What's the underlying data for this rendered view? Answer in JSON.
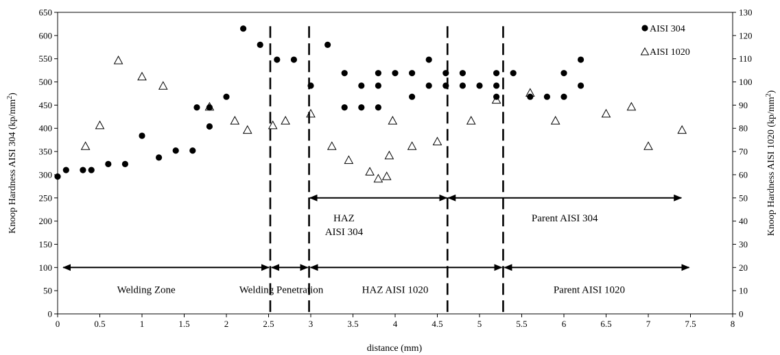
{
  "chart_data": {
    "type": "scatter",
    "xlabel": "distance (mm)",
    "ylabel_left": "Knoop Hardness AISI 304 (kp/mm²)",
    "ylabel_right": "Knoop Hardness AISI 1020 (kp/mm²)",
    "xlim": [
      0,
      8
    ],
    "ylim_left": [
      0,
      650
    ],
    "ylim_right": [
      0,
      130
    ],
    "x_ticks": [
      "0",
      "0.5",
      "1",
      "1.5",
      "2",
      "2.5",
      "3",
      "3.5",
      "4",
      "4.5",
      "5",
      "5.5",
      "6",
      "6.5",
      "7",
      "7.5",
      "8"
    ],
    "y_left_ticks": [
      "0",
      "50",
      "100",
      "150",
      "200",
      "250",
      "300",
      "350",
      "400",
      "450",
      "500",
      "550",
      "600",
      "650"
    ],
    "y_right_ticks": [
      "0",
      "10",
      "20",
      "30",
      "40",
      "50",
      "60",
      "70",
      "80",
      "90",
      "100",
      "110",
      "120",
      "130"
    ],
    "legend_placement": "top-right",
    "series": [
      {
        "name": "AISI 304",
        "marker": "filled-circle",
        "axis": "left",
        "points": [
          [
            0,
            296
          ],
          [
            0.1,
            310
          ],
          [
            0.3,
            310
          ],
          [
            0.4,
            310
          ],
          [
            0.6,
            323
          ],
          [
            0.8,
            323
          ],
          [
            1.0,
            384
          ],
          [
            1.2,
            337
          ],
          [
            1.4,
            352
          ],
          [
            1.6,
            352
          ],
          [
            1.65,
            445
          ],
          [
            1.8,
            404
          ],
          [
            1.8,
            445
          ],
          [
            2.0,
            468
          ],
          [
            2.2,
            615
          ],
          [
            2.4,
            580
          ],
          [
            2.6,
            548
          ],
          [
            2.8,
            548
          ],
          [
            3.0,
            492
          ],
          [
            3.2,
            580
          ],
          [
            3.4,
            519
          ],
          [
            3.4,
            445
          ],
          [
            3.6,
            492
          ],
          [
            3.6,
            445
          ],
          [
            3.8,
            519
          ],
          [
            3.8,
            492
          ],
          [
            3.8,
            445
          ],
          [
            4.0,
            519
          ],
          [
            4.2,
            519
          ],
          [
            4.2,
            468
          ],
          [
            4.4,
            548
          ],
          [
            4.4,
            492
          ],
          [
            4.6,
            519
          ],
          [
            4.6,
            492
          ],
          [
            4.8,
            519
          ],
          [
            4.8,
            492
          ],
          [
            5.0,
            492
          ],
          [
            5.2,
            519
          ],
          [
            5.2,
            492
          ],
          [
            5.2,
            468
          ],
          [
            5.4,
            519
          ],
          [
            5.6,
            468
          ],
          [
            5.8,
            468
          ],
          [
            6.0,
            519
          ],
          [
            6.0,
            468
          ],
          [
            6.2,
            548
          ],
          [
            6.2,
            492
          ]
        ]
      },
      {
        "name": "AISI 1020",
        "marker": "open-triangle",
        "axis": "right",
        "points": [
          [
            0.33,
            72
          ],
          [
            0.5,
            81
          ],
          [
            0.72,
            109
          ],
          [
            1.0,
            102
          ],
          [
            1.25,
            98
          ],
          [
            1.8,
            89
          ],
          [
            2.1,
            83
          ],
          [
            2.25,
            79
          ],
          [
            2.55,
            81
          ],
          [
            2.7,
            83
          ],
          [
            3.0,
            86
          ],
          [
            3.25,
            72
          ],
          [
            3.45,
            66
          ],
          [
            3.7,
            61
          ],
          [
            3.8,
            58
          ],
          [
            3.9,
            59
          ],
          [
            3.93,
            68
          ],
          [
            3.97,
            83
          ],
          [
            4.2,
            72
          ],
          [
            4.5,
            74
          ],
          [
            4.9,
            83
          ],
          [
            5.2,
            92
          ],
          [
            5.6,
            95
          ],
          [
            5.9,
            83
          ],
          [
            6.5,
            86
          ],
          [
            6.8,
            89
          ],
          [
            7.0,
            72
          ],
          [
            7.4,
            79
          ]
        ]
      }
    ],
    "zone_dividers_x": [
      2.52,
      2.98,
      4.62,
      5.28
    ],
    "zones_304": [
      {
        "label_lines": [
          "HAZ",
          "AISI 304"
        ],
        "from": 2.98,
        "to": 4.62,
        "y": 50
      },
      {
        "label_lines": [
          "Parent AISI 304"
        ],
        "from": 4.62,
        "to": 7.4,
        "y": 50
      }
    ],
    "zones_1020": [
      {
        "label": "Welding Zone",
        "from": 0.05,
        "to": 2.52,
        "y": 20
      },
      {
        "label": "Welding Penetration",
        "from": 2.52,
        "to": 2.98,
        "y": 20
      },
      {
        "label": "HAZ AISI 1020",
        "from": 2.98,
        "to": 5.28,
        "y": 20
      },
      {
        "label": "Parent AISI 1020",
        "from": 5.28,
        "to": 7.5,
        "y": 20
      }
    ]
  }
}
